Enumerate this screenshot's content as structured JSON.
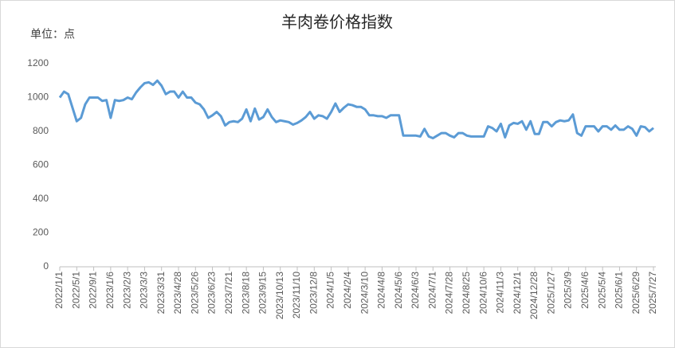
{
  "chart_data": {
    "type": "line",
    "title": "羊肉卷价格指数",
    "y_unit_label": "单位：点",
    "categories": [
      "2022/1/1",
      null,
      null,
      null,
      "2022/5/1",
      null,
      null,
      null,
      "2022/9/1",
      null,
      null,
      null,
      "2023/1/6",
      null,
      null,
      null,
      "2023/2/3",
      null,
      null,
      null,
      "2023/3/3",
      null,
      null,
      null,
      "2023/3/31",
      null,
      null,
      null,
      "2023/4/28",
      null,
      null,
      null,
      "2023/5/26",
      null,
      null,
      null,
      "2023/6/23",
      null,
      null,
      null,
      "2023/7/21",
      null,
      null,
      null,
      "2023/8/18",
      null,
      null,
      null,
      "2023/9/15",
      null,
      null,
      null,
      "2023/10/13",
      null,
      null,
      null,
      "2023/11/10",
      null,
      null,
      null,
      "2023/12/8",
      null,
      null,
      null,
      "2024/1/5",
      null,
      null,
      null,
      "2024/2/4",
      null,
      null,
      null,
      "2024/3/10",
      null,
      null,
      null,
      "2024/4/8",
      null,
      null,
      null,
      "2024/5/6",
      null,
      null,
      null,
      "2024/6/3",
      null,
      null,
      null,
      "2024/7/1",
      null,
      null,
      null,
      "2024/7/28",
      null,
      null,
      null,
      "2024/8/25",
      null,
      null,
      null,
      "2024/10/6",
      null,
      null,
      null,
      "2024/11/3",
      null,
      null,
      null,
      "2024/12/1",
      null,
      null,
      null,
      "2024/12/28",
      null,
      null,
      null,
      "2025/1/27",
      null,
      null,
      null,
      "2025/3/9",
      null,
      null,
      null,
      "2025/4/6",
      null,
      null,
      null,
      "2025/5/4",
      null,
      null,
      null,
      "2025/6/1",
      null,
      null,
      null,
      "2025/6/29",
      null,
      null,
      null,
      "2025/7/27"
    ],
    "values": [
      1000,
      1035,
      1020,
      940,
      860,
      880,
      960,
      1000,
      1000,
      1000,
      980,
      985,
      880,
      985,
      980,
      985,
      1000,
      990,
      1030,
      1060,
      1085,
      1090,
      1075,
      1100,
      1070,
      1020,
      1035,
      1035,
      1000,
      1035,
      1000,
      1000,
      970,
      960,
      930,
      880,
      895,
      915,
      890,
      835,
      855,
      860,
      855,
      875,
      930,
      860,
      935,
      870,
      885,
      930,
      885,
      855,
      865,
      860,
      855,
      840,
      850,
      865,
      885,
      915,
      875,
      895,
      890,
      875,
      915,
      965,
      915,
      940,
      960,
      955,
      945,
      945,
      930,
      895,
      895,
      890,
      890,
      880,
      895,
      895,
      895,
      775,
      775,
      775,
      775,
      770,
      815,
      770,
      760,
      775,
      790,
      790,
      775,
      765,
      790,
      790,
      775,
      770,
      770,
      770,
      770,
      830,
      820,
      800,
      845,
      765,
      835,
      850,
      845,
      860,
      810,
      860,
      785,
      785,
      855,
      855,
      830,
      855,
      865,
      860,
      865,
      900,
      790,
      775,
      830,
      830,
      830,
      800,
      830,
      830,
      810,
      835,
      810,
      810,
      830,
      815,
      775,
      830,
      825,
      800,
      820
    ],
    "color": "#5b9bd5",
    "ylim": [
      0,
      1200
    ],
    "yticks": [
      0,
      200,
      400,
      600,
      800,
      1000,
      1200
    ],
    "grid": false
  }
}
